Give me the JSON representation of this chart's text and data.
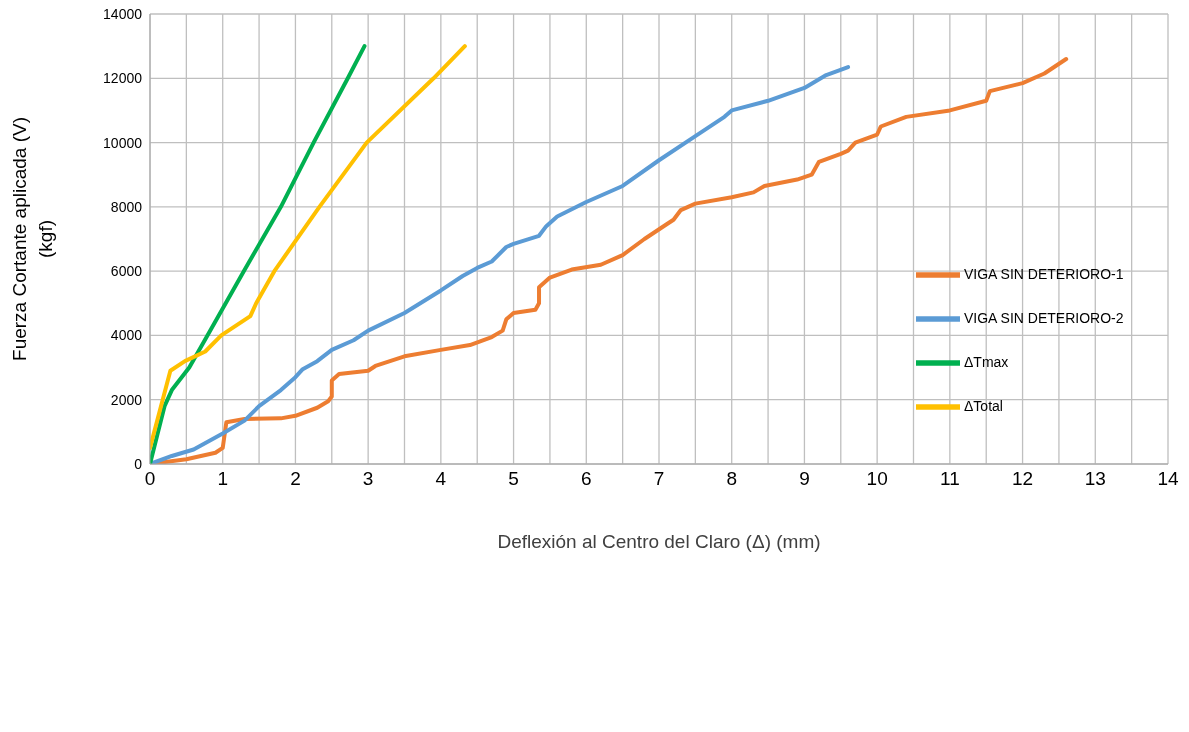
{
  "chart_data": {
    "type": "line",
    "xlabel": "Deflexión al Centro del Claro (Δ) (mm)",
    "ylabel": "Fuerza Cortante aplicada (V)\n(kgf)",
    "xlim": [
      0,
      14
    ],
    "ylim": [
      0,
      14000
    ],
    "xticks": [
      0,
      {
        "value": 0.5,
        "label": null
      },
      1,
      {
        "value": 1.5,
        "label": null
      },
      2,
      {
        "value": 2.5,
        "label": null
      },
      3,
      {
        "value": 3.5,
        "label": null
      },
      4,
      {
        "value": 4.5,
        "label": null
      },
      5,
      {
        "value": 5.5,
        "label": null
      },
      6,
      {
        "value": 6.5,
        "label": null
      },
      7,
      {
        "value": 7.5,
        "label": null
      },
      8,
      {
        "value": 8.5,
        "label": null
      },
      9,
      {
        "value": 9.5,
        "label": null
      },
      10,
      {
        "value": 10.5,
        "label": null
      },
      11,
      {
        "value": 11.5,
        "label": null
      },
      12,
      {
        "value": 12.5,
        "label": null
      },
      13,
      {
        "value": 13.5,
        "label": null
      },
      14
    ],
    "yticks": [
      0,
      2000,
      4000,
      6000,
      8000,
      10000,
      12000,
      14000
    ],
    "grid": true,
    "legend": "right",
    "marker": "none",
    "line_style": "solid",
    "series": [
      {
        "name": "VIGA SIN DETERIORO-1",
        "color": "#ed7d31",
        "x": [
          0,
          0.5,
          0.9,
          1.0,
          1.05,
          1.3,
          1.8,
          2.0,
          2.3,
          2.45,
          2.5,
          2.5,
          2.6,
          3.0,
          3.1,
          3.5,
          4.0,
          4.4,
          4.7,
          4.85,
          4.9,
          5.0,
          5.3,
          5.35,
          5.35,
          5.5,
          5.8,
          6.2,
          6.5,
          6.8,
          7.1,
          7.2,
          7.3,
          7.5,
          8.0,
          8.3,
          8.45,
          8.9,
          9.1,
          9.2,
          9.5,
          9.6,
          9.7,
          10.0,
          10.05,
          10.4,
          11.0,
          11.5,
          11.55,
          12.0,
          12.3,
          12.6
        ],
        "values": [
          0,
          150,
          350,
          500,
          1300,
          1400,
          1420,
          1500,
          1750,
          1950,
          2100,
          2600,
          2800,
          2900,
          3050,
          3350,
          3550,
          3700,
          3950,
          4150,
          4500,
          4700,
          4800,
          5000,
          5500,
          5800,
          6050,
          6200,
          6500,
          7000,
          7450,
          7600,
          7900,
          8100,
          8300,
          8450,
          8650,
          8850,
          9000,
          9400,
          9650,
          9750,
          10000,
          10250,
          10500,
          10800,
          11000,
          11300,
          11600,
          11850,
          12150,
          12600
        ]
      },
      {
        "name": "VIGA SIN DETERIORO-2",
        "color": "#5b9bd5",
        "x": [
          0,
          0.3,
          0.6,
          0.8,
          1.0,
          1.3,
          1.5,
          1.8,
          2.0,
          2.1,
          2.3,
          2.5,
          2.8,
          3.0,
          3.5,
          4.0,
          4.3,
          4.5,
          4.7,
          4.9,
          5.0,
          5.35,
          5.45,
          5.6,
          6.0,
          6.5,
          7.0,
          7.5,
          7.9,
          8.0,
          8.5,
          9.0,
          9.3,
          9.6
        ],
        "values": [
          0,
          250,
          450,
          700,
          950,
          1350,
          1800,
          2300,
          2700,
          2950,
          3200,
          3550,
          3850,
          4150,
          4700,
          5400,
          5850,
          6100,
          6300,
          6750,
          6850,
          7100,
          7400,
          7700,
          8150,
          8650,
          9450,
          10200,
          10800,
          11000,
          11300,
          11700,
          12100,
          12350
        ]
      },
      {
        "name": "ΔTmax",
        "color": "#00b050",
        "x": [
          0,
          0.1,
          0.2,
          0.3,
          0.54,
          0.79,
          1.29,
          1.8,
          2.25,
          2.72,
          2.95
        ],
        "values": [
          0,
          900,
          1800,
          2300,
          3000,
          4000,
          6000,
          8000,
          10000,
          12000,
          13000
        ]
      },
      {
        "name": "ΔTotal",
        "color": "#ffc000",
        "x": [
          0,
          0.28,
          0.48,
          0.76,
          0.98,
          1.38,
          1.46,
          1.71,
          2.33,
          2.98,
          3.9,
          4.33
        ],
        "values": [
          500,
          2900,
          3200,
          3500,
          4000,
          4600,
          5000,
          6000,
          8000,
          10000,
          12000,
          13000
        ]
      }
    ]
  }
}
